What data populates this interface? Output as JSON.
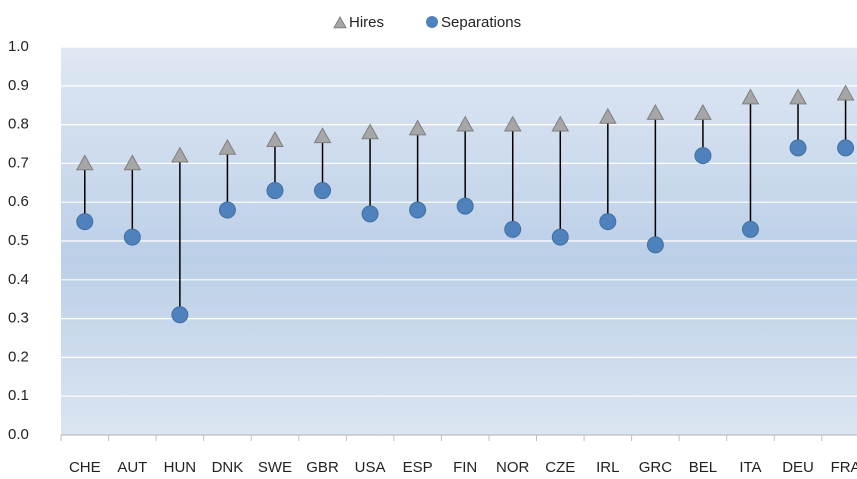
{
  "chart_data": {
    "type": "dot-range",
    "categories": [
      "CHE",
      "AUT",
      "HUN",
      "DNK",
      "SWE",
      "GBR",
      "USA",
      "ESP",
      "FIN",
      "NOR",
      "CZE",
      "IRL",
      "GRC",
      "BEL",
      "ITA",
      "DEU",
      "FRA"
    ],
    "series": [
      {
        "name": "Hires",
        "color": "#a6a6a6",
        "marker": "triangle",
        "values": [
          0.7,
          0.7,
          0.72,
          0.74,
          0.76,
          0.77,
          0.78,
          0.79,
          0.8,
          0.8,
          0.8,
          0.82,
          0.83,
          0.83,
          0.87,
          0.87,
          0.88
        ]
      },
      {
        "name": "Separations",
        "color": "#4f81bd",
        "marker": "circle",
        "values": [
          0.55,
          0.51,
          0.31,
          0.58,
          0.63,
          0.63,
          0.57,
          0.58,
          0.59,
          0.53,
          0.51,
          0.55,
          0.49,
          0.72,
          0.53,
          0.74,
          0.74
        ]
      }
    ],
    "ylim": [
      0,
      1
    ],
    "yticks": [
      {
        "value": 0,
        "label": "0.0"
      },
      0.1,
      0.2,
      0.3,
      0.4,
      0.5,
      0.6,
      0.7,
      0.8,
      0.9,
      {
        "value": 1,
        "label": "1.0"
      }
    ],
    "grid": true,
    "legend": "top"
  }
}
